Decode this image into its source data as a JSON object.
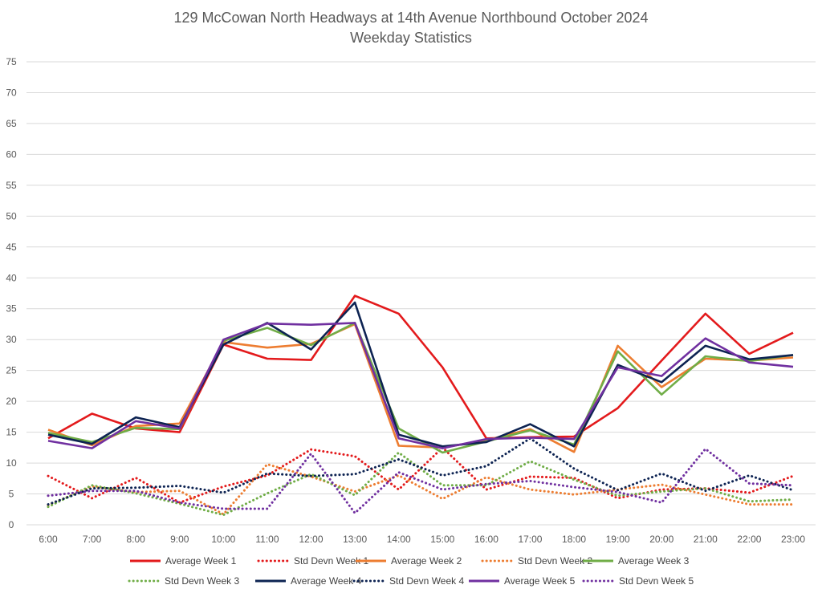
{
  "chart_data": {
    "type": "line",
    "title": "129 McCowan North Headways at 14th Avenue Northbound October 2024",
    "subtitle": "Weekday Statistics",
    "xlabel": "",
    "ylabel": "",
    "ylim": [
      0,
      75
    ],
    "yticks": [
      "0",
      "5",
      "10",
      "15",
      "20",
      "25",
      "30",
      "35",
      "40",
      "45",
      "50",
      "55",
      "60",
      "65",
      "70",
      "75"
    ],
    "categories": [
      "6:00",
      "7:00",
      "8:00",
      "9:00",
      "10:00",
      "11:00",
      "12:00",
      "13:00",
      "14:00",
      "15:00",
      "16:00",
      "17:00",
      "18:00",
      "19:00",
      "20:00",
      "21:00",
      "22:00",
      "23:00"
    ],
    "grid": true,
    "legend_position": "bottom",
    "series": [
      {
        "name": "Average Week 1",
        "color": "#E31A1C",
        "style": "solid",
        "values": [
          14.0,
          18.0,
          15.6,
          15.0,
          29.2,
          26.9,
          26.7,
          37.1,
          34.2,
          25.5,
          14.0,
          14.2,
          14.3,
          18.9,
          26.6,
          34.2,
          27.7,
          31.1
        ]
      },
      {
        "name": "Std Devn Week 1",
        "color": "#E31A1C",
        "style": "dotted",
        "values": [
          7.9,
          4.3,
          7.6,
          3.6,
          6.2,
          8.0,
          12.2,
          11.1,
          5.7,
          12.5,
          5.7,
          7.8,
          7.6,
          4.3,
          5.7,
          5.9,
          5.2,
          7.9
        ]
      },
      {
        "name": "Average Week 2",
        "color": "#ED7D31",
        "style": "solid",
        "values": [
          15.4,
          12.9,
          16.0,
          16.4,
          29.6,
          28.7,
          29.3,
          32.5,
          12.8,
          12.5,
          13.7,
          15.5,
          11.8,
          29.0,
          22.3,
          26.9,
          26.6,
          27.1
        ]
      },
      {
        "name": "Std Devn Week 2",
        "color": "#ED7D31",
        "style": "dotted",
        "values": [
          3.2,
          6.2,
          5.3,
          5.5,
          1.7,
          9.8,
          7.8,
          5.4,
          8.0,
          4.2,
          7.7,
          5.7,
          4.9,
          5.7,
          6.5,
          4.9,
          3.3,
          3.3
        ]
      },
      {
        "name": "Average Week 3",
        "color": "#70AD47",
        "style": "solid",
        "values": [
          14.9,
          13.4,
          15.7,
          15.5,
          29.8,
          31.9,
          29.1,
          32.7,
          15.6,
          11.7,
          13.5,
          15.3,
          13.0,
          28.1,
          21.1,
          27.3,
          26.5,
          27.5
        ]
      },
      {
        "name": "Std Devn Week 3",
        "color": "#70AD47",
        "style": "dotted",
        "values": [
          2.9,
          6.4,
          5.1,
          3.4,
          1.6,
          5.1,
          8.2,
          4.8,
          11.7,
          6.4,
          6.4,
          10.3,
          7.3,
          4.7,
          5.4,
          5.9,
          3.8,
          4.1
        ]
      },
      {
        "name": "Average Week 4",
        "color": "#0D2352",
        "style": "solid",
        "values": [
          14.6,
          13.1,
          17.4,
          15.8,
          29.2,
          32.7,
          28.4,
          36.0,
          14.6,
          12.7,
          13.4,
          16.3,
          12.7,
          25.9,
          23.1,
          29.0,
          26.8,
          27.5
        ]
      },
      {
        "name": "Std Devn Week 4",
        "color": "#0D2352",
        "style": "dotted",
        "values": [
          3.3,
          5.9,
          6.0,
          6.3,
          5.2,
          8.3,
          7.9,
          8.2,
          10.6,
          8.0,
          9.5,
          14.0,
          9.1,
          5.6,
          8.3,
          5.5,
          8.0,
          5.6
        ]
      },
      {
        "name": "Average Week 5",
        "color": "#7030A0",
        "style": "solid",
        "values": [
          13.6,
          12.4,
          16.8,
          15.6,
          30.0,
          32.6,
          32.4,
          32.7,
          14.0,
          12.4,
          13.9,
          14.1,
          13.9,
          25.5,
          24.1,
          30.2,
          26.3,
          25.6
        ]
      },
      {
        "name": "Std Devn Week 5",
        "color": "#7030A0",
        "style": "dotted",
        "values": [
          4.7,
          5.5,
          5.5,
          3.6,
          2.6,
          2.6,
          11.5,
          1.9,
          8.5,
          5.7,
          6.6,
          7.1,
          6.1,
          5.3,
          3.6,
          12.3,
          6.7,
          6.4
        ]
      }
    ]
  }
}
